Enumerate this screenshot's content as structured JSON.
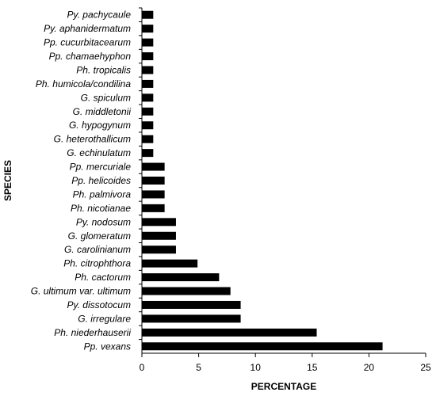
{
  "chart_data": {
    "type": "bar",
    "orientation": "horizontal",
    "title": "",
    "xlabel": "PERCENTAGE",
    "ylabel": "SPECIES",
    "xlim": [
      0,
      25
    ],
    "xticks": [
      0,
      5,
      10,
      15,
      20,
      25
    ],
    "grid": false,
    "legend": "none",
    "bar_color": "#000000",
    "categories": [
      "Py. pachycaule",
      "Py. aphanidermatum",
      "Pp. cucurbitacearum",
      "Pp. chamaehyphon",
      "Ph. tropicalis",
      "Ph. humicola/condilina",
      "G. spiculum",
      "G. middletonii",
      "G. hypogynum",
      "G. heterothallicum",
      "G. echinulatum",
      "Pp. mercuriale",
      "Pp. helicoides",
      "Ph. palmivora",
      "Ph. nicotianae",
      "Py. nodosum",
      "G. glomeratum",
      "G. carolinianum",
      "Ph. citrophthora",
      "Ph. cactorum",
      "G. ultimum var. ultimum",
      "Py. dissotocum",
      "G. irregulare",
      "Ph. niederhauserii",
      "Pp. vexans"
    ],
    "values": [
      1.0,
      1.0,
      1.0,
      1.0,
      1.0,
      1.0,
      1.0,
      1.0,
      1.0,
      1.0,
      1.0,
      2.0,
      2.0,
      2.0,
      2.0,
      3.0,
      3.0,
      3.0,
      4.9,
      6.8,
      7.8,
      8.7,
      8.7,
      15.4,
      21.2
    ]
  }
}
